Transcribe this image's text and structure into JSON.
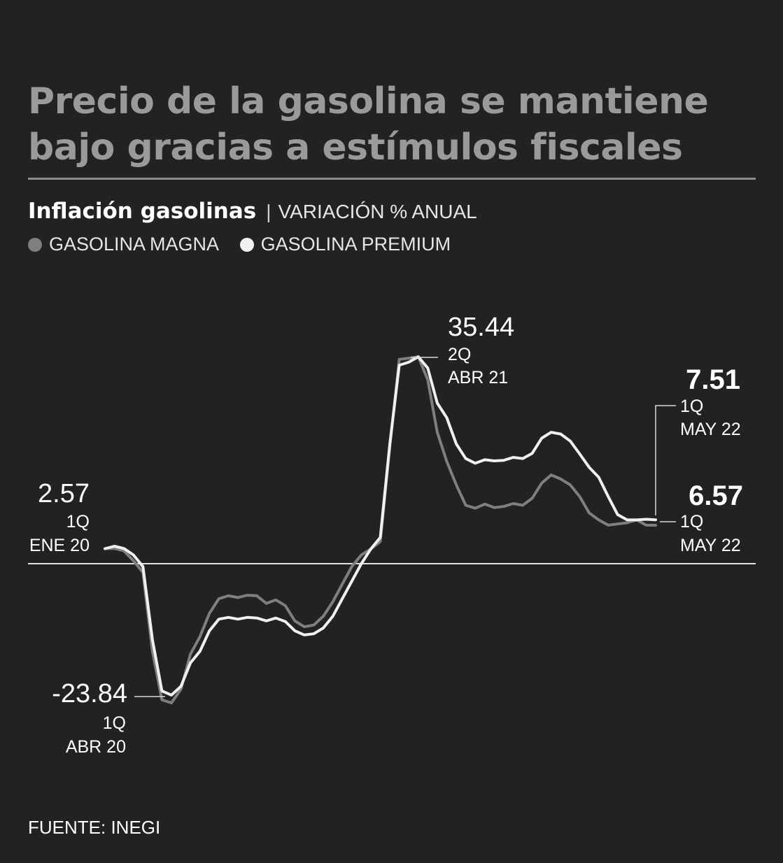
{
  "title_line1": "Precio de la gasolina se mantiene",
  "title_line2": "bajo gracias a estímulos fiscales",
  "subtitle_bold": "Inflación gasolinas",
  "subtitle_separator": "|",
  "subtitle_unit": "VARIACIÓN % ANUAL",
  "source": "FUENTE: INEGI",
  "colors": {
    "background": "#232122",
    "magna": "#7f7f7f",
    "premium": "#f0f0f0",
    "title": "#9a9a9a"
  },
  "chart_data": {
    "type": "line",
    "ylim": [
      -26,
      38
    ],
    "zero_line": 0,
    "series": [
      {
        "name": "GASOLINA MAGNA",
        "key": "magna",
        "values": [
          2.57,
          2.6,
          2.2,
          0.5,
          -1.5,
          -15.0,
          -23.3,
          -23.84,
          -21.5,
          -15.5,
          -12.5,
          -8.5,
          -6.0,
          -5.5,
          -5.8,
          -5.4,
          -5.5,
          -6.8,
          -6.2,
          -7.2,
          -9.8,
          -10.8,
          -10.5,
          -9.0,
          -6.5,
          -3.5,
          -0.5,
          1.5,
          2.5,
          3.8,
          20.0,
          35.0,
          35.2,
          35.44,
          31.5,
          22.5,
          17.5,
          13.5,
          10.0,
          9.5,
          10.2,
          9.6,
          9.8,
          10.3,
          10.0,
          11.2,
          13.8,
          15.2,
          14.5,
          13.5,
          11.5,
          8.7,
          7.5,
          6.6,
          6.8,
          7.0,
          7.5,
          6.6,
          6.57
        ]
      },
      {
        "name": "GASOLINA PREMIUM",
        "key": "premium",
        "values": [
          2.57,
          3.0,
          2.6,
          1.5,
          -0.5,
          -13.0,
          -21.8,
          -22.5,
          -21.0,
          -17.0,
          -15.0,
          -11.5,
          -9.5,
          -9.2,
          -9.5,
          -9.2,
          -9.3,
          -9.8,
          -9.3,
          -9.9,
          -11.5,
          -12.2,
          -12.0,
          -11.0,
          -9.0,
          -6.0,
          -3.0,
          0.0,
          2.5,
          4.5,
          20.5,
          34.0,
          34.5,
          35.44,
          33.5,
          27.5,
          25.0,
          20.5,
          18.0,
          17.2,
          17.8,
          17.6,
          17.7,
          18.2,
          18.0,
          18.9,
          21.5,
          22.5,
          22.2,
          21.0,
          18.8,
          16.5,
          14.8,
          11.5,
          8.4,
          7.5,
          7.5,
          7.6,
          7.51
        ]
      }
    ],
    "annotations": [
      {
        "value": "2.57",
        "period": "1Q",
        "date": "ENE 20"
      },
      {
        "value": "-23.84",
        "period": "1Q",
        "date": "ABR 20"
      },
      {
        "value": "35.44",
        "period": "2Q",
        "date": "ABR 21"
      },
      {
        "value": "7.51",
        "period": "1Q",
        "date": "MAY 22"
      },
      {
        "value": "6.57",
        "period": "1Q",
        "date": "MAY 22"
      }
    ]
  }
}
